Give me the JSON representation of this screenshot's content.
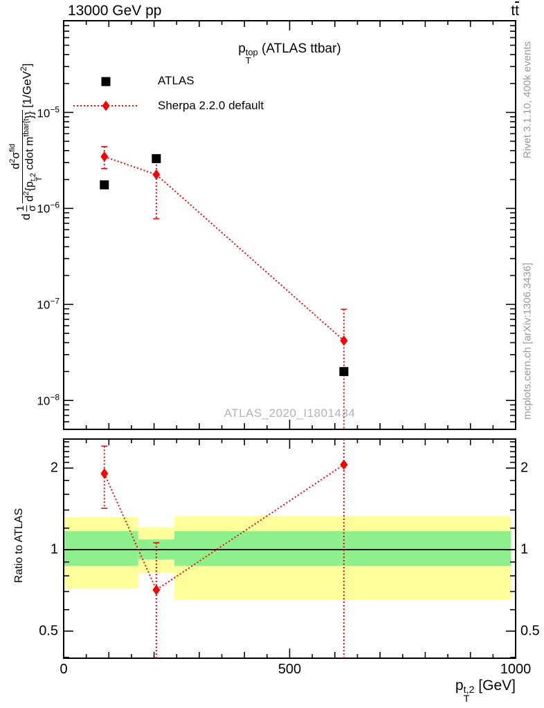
{
  "header": {
    "left": "13000 GeV pp",
    "right_t1": "t",
    "right_t2": "t"
  },
  "title": {
    "base": "p",
    "sup": "top",
    "sub": "T",
    "rest": " (ATLAS ttbar)"
  },
  "legend": {
    "items": [
      {
        "label": "ATLAS"
      },
      {
        "label": "Sherpa 2.2.0 default"
      }
    ]
  },
  "watermark": "ATLAS_2020_I1801434",
  "side_notes": {
    "top": "Rivet 3.1.10,  400k events",
    "bottom": "mcplots.cern.ch [arXiv:1306.3436]"
  },
  "ylabel": {
    "lead": "d",
    "f1_num": "1",
    "f1_den": "σ",
    "num": {
      "d": "d",
      "dsup": "2",
      "sigma": "σ",
      "sup": "fid"
    },
    "den": {
      "d": "d",
      "dsup": "2",
      "open": "{p",
      "psup": "t,2",
      "psub": "T",
      "mid": " cdot m",
      "msup": "tbar{t",
      "close": "}}"
    },
    "unit": {
      "a": " [1/GeV",
      "sup": "2",
      "b": "]"
    }
  },
  "ratio_ylabel": "Ratio to ATLAS",
  "xlabel": {
    "base": "p",
    "sup": "t,2",
    "sub": "T",
    "unit": " [GeV]"
  },
  "axes": {
    "main_y_ticks": [
      {
        "exp": "−5",
        "value": 1e-05
      },
      {
        "exp": "−6",
        "value": 1e-06
      },
      {
        "exp": "−7",
        "value": 1e-07
      },
      {
        "exp": "−8",
        "value": 1e-08
      }
    ],
    "ratio_y_ticks": [
      {
        "text": "2",
        "value": 2
      },
      {
        "text": "1",
        "value": 1
      },
      {
        "text": "0.5",
        "value": 0.5
      }
    ],
    "x_ticks": [
      {
        "text": "0",
        "value": 0
      },
      {
        "text": "500",
        "value": 500
      },
      {
        "text": "1000",
        "value": 1000
      }
    ]
  },
  "colors": {
    "accent": "#ff0000",
    "band_outer": "#ffff9c",
    "band_inner": "#8df08c",
    "gray_text": "#999999",
    "watermark": "#b3b3b3"
  },
  "chart_data": [
    {
      "panel": "main",
      "type": "scatter",
      "title": "pT^top (ATLAS ttbar)",
      "xlim": [
        0,
        1000
      ],
      "ylog": true,
      "ylim": [
        5e-09,
        9e-05
      ],
      "ylabel": "d 1/σ d²σ^fid / d²{pT^t,2 cdot m^tbar{t}} [1/GeV²]",
      "series": [
        {
          "name": "ATLAS",
          "marker": "square",
          "color": "#000000",
          "x": [
            90,
            205,
            620
          ],
          "y": [
            1.76e-06,
            3.3e-06,
            2e-08
          ]
        },
        {
          "name": "Sherpa 2.2.0 default",
          "marker": "diamond",
          "color": "#ff0000",
          "line": "dotted",
          "x": [
            90,
            205,
            620
          ],
          "y": [
            3.46e-06,
            2.25e-06,
            4.2e-08
          ],
          "yerr_lo": [
            2.6e-06,
            7.8e-07,
            5e-09
          ],
          "yerr_hi": [
            4.4e-06,
            3.1e-06,
            8.9e-08
          ]
        }
      ]
    },
    {
      "panel": "ratio",
      "type": "ratio",
      "ylabel": "Ratio to ATLAS",
      "xlim": [
        0,
        1000
      ],
      "ylog": true,
      "ylim": [
        0.397,
        2.56
      ],
      "points": {
        "x": [
          90,
          205,
          620
        ],
        "y": [
          1.91,
          0.71,
          2.06
        ],
        "yerr_lo": [
          1.42,
          0.397,
          0.397
        ],
        "yerr_hi": [
          2.41,
          1.06,
          2.56
        ]
      },
      "bands": {
        "bins": [
          [
            0,
            165
          ],
          [
            165,
            245
          ],
          [
            245,
            990
          ]
        ],
        "outer": [
          [
            0.72,
            1.32
          ],
          [
            0.82,
            1.21
          ],
          [
            0.65,
            1.33
          ]
        ],
        "inner": [
          [
            0.87,
            1.17
          ],
          [
            0.92,
            1.09
          ],
          [
            0.87,
            1.17
          ]
        ]
      }
    }
  ]
}
